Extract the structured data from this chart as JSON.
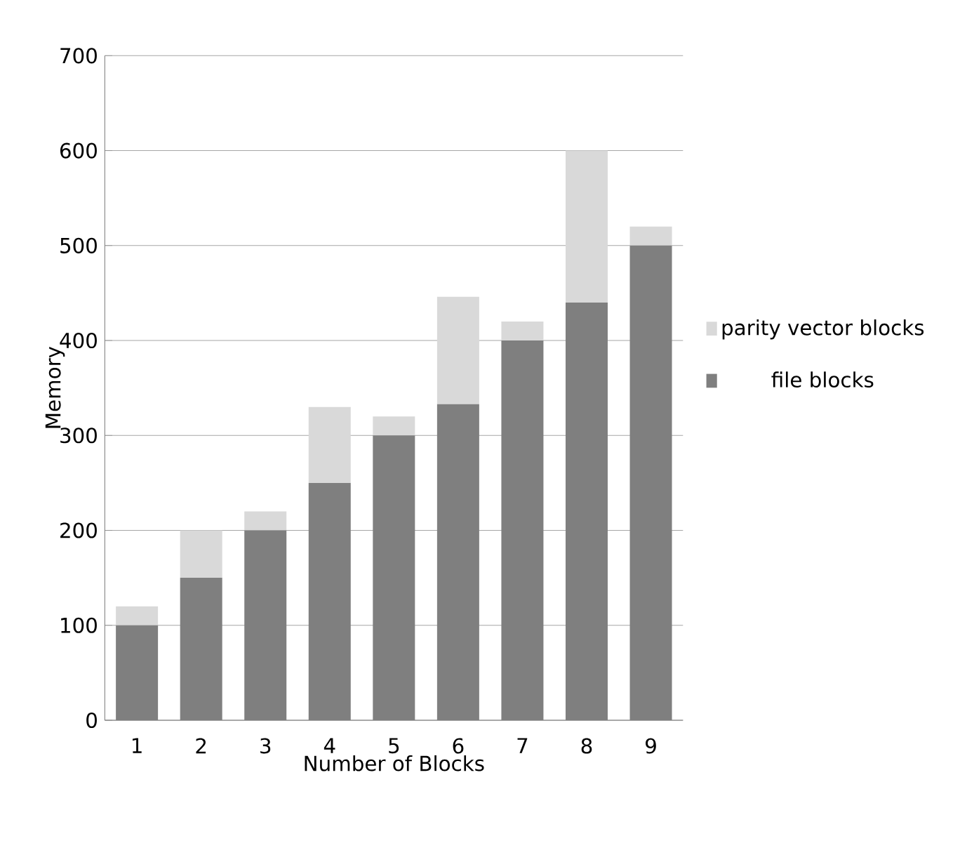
{
  "chart_data": {
    "type": "bar",
    "stacked": true,
    "xlabel": "Number of Blocks",
    "ylabel": "Memory",
    "categories": [
      "1",
      "2",
      "3",
      "4",
      "5",
      "6",
      "7",
      "8",
      "9"
    ],
    "series": [
      {
        "name": "file blocks",
        "color": "#7f7f7f",
        "values": [
          100,
          150,
          200,
          250,
          300,
          333,
          400,
          440,
          500
        ]
      },
      {
        "name": "parity vector blocks",
        "color": "#d9d9d9",
        "values": [
          20,
          50,
          20,
          80,
          20,
          113,
          20,
          160,
          20
        ]
      }
    ],
    "ylim": [
      0,
      700
    ],
    "yticks": [
      0,
      100,
      200,
      300,
      400,
      500,
      600,
      700
    ],
    "grid": "y",
    "legend": "right"
  }
}
